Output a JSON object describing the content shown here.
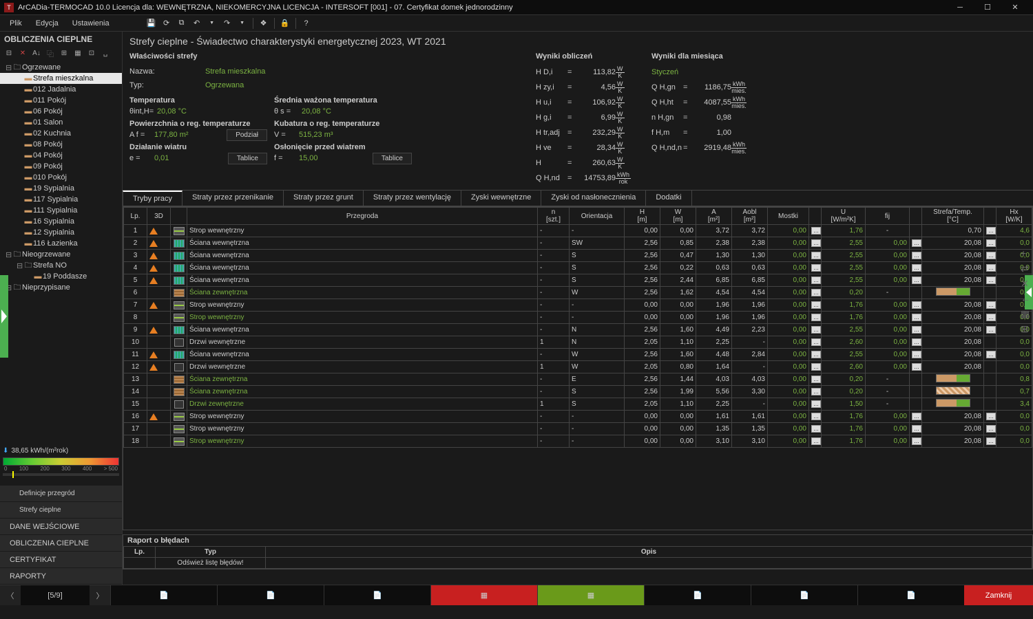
{
  "window": {
    "title": "ArCADia-TERMOCAD 10.0 Licencja dla: WEWNĘTRZNA, NIEKOMERCYJNA LICENCJA - INTERSOFT [001] - 07. Certyfikat domek jednorodzinny",
    "app_badge": "T"
  },
  "menu": {
    "file": "Plik",
    "edit": "Edycja",
    "settings": "Ustawienia"
  },
  "left_panel": {
    "title": "OBLICZENIA CIEPLNE",
    "groups": [
      {
        "label": "Ogrzewane",
        "icon": "folder",
        "expanded": true,
        "items": [
          {
            "label": "Strefa mieszkalna",
            "selected": true
          },
          {
            "label": "012 Jadalnia"
          },
          {
            "label": "011 Pokój"
          },
          {
            "label": "06 Pokój"
          },
          {
            "label": "01 Salon"
          },
          {
            "label": "02 Kuchnia"
          },
          {
            "label": "08 Pokój"
          },
          {
            "label": "04 Pokój"
          },
          {
            "label": "09 Pokój"
          },
          {
            "label": "010 Pokój"
          },
          {
            "label": "19 Sypialnia"
          },
          {
            "label": "117 Sypialnia"
          },
          {
            "label": "111 Sypialnia"
          },
          {
            "label": "16 Sypialnia"
          },
          {
            "label": "12 Sypialnia"
          },
          {
            "label": "116 Łazienka"
          }
        ]
      },
      {
        "label": "Nieogrzewane",
        "icon": "folder",
        "expanded": true,
        "items": [
          {
            "label": "Strefa NO",
            "sub": true,
            "items": [
              {
                "label": "19 Poddasze"
              }
            ]
          }
        ]
      },
      {
        "label": "Nieprzypisane",
        "icon": "folder"
      }
    ],
    "gauge_value": "38,65 kWh/(m²rok)",
    "gauge_ticks": [
      "0",
      "100",
      "200",
      "300",
      "400",
      "> 500"
    ],
    "buttons": {
      "definicje": "Definicje przegród",
      "strefy": "Strefy cieplne",
      "dane": "DANE WEJŚCIOWE",
      "oblicz": "OBLICZENIA CIEPLNE",
      "cert": "CERTYFIKAT",
      "raporty": "RAPORTY"
    }
  },
  "main": {
    "title": "Strefy cieplne - Świadectwo charakterystyki energetycznej 2023, WT 2021",
    "props_title": "Właściwości strefy",
    "nazwa_lbl": "Nazwa:",
    "nazwa_val": "Strefa mieszkalna",
    "typ_lbl": "Typ:",
    "typ_val": "Ogrzewana",
    "temp_lbl": "Temperatura",
    "temp_sym": "θint,H=",
    "temp_val": "20,08 °C",
    "srednia_lbl": "Średnia ważona temperatura",
    "srednia_sym": "θ s =",
    "srednia_val": "20,08 °C",
    "pow_lbl": "Powierzchnia o reg. temperaturze",
    "pow_sym": "A f =",
    "pow_val": "177,80 m²",
    "kub_lbl": "Kubatura o reg. temperaturze",
    "kub_sym": "V  =",
    "kub_val": "515,23 m³",
    "dzial_lbl": "Działanie wiatru",
    "dzial_sym": "e  =",
    "dzial_val": "0,01",
    "oslon_lbl": "Osłonięcie przed wiatrem",
    "oslon_sym": "f  =",
    "oslon_val": "15,00",
    "podzial_btn": "Podział",
    "tablice_btn": "Tablice",
    "wyniki_title": "Wyniki obliczeń",
    "results": [
      {
        "lbl": "H D,i",
        "val": "113,82",
        "unit_top": "W",
        "unit_bot": "K"
      },
      {
        "lbl": "H zy,i",
        "val": "4,56",
        "unit_top": "W",
        "unit_bot": "K"
      },
      {
        "lbl": "H u,i",
        "val": "106,92",
        "unit_top": "W",
        "unit_bot": "K"
      },
      {
        "lbl": "H g,i",
        "val": "6,99",
        "unit_top": "W",
        "unit_bot": "K"
      },
      {
        "lbl": "H tr,adj",
        "val": "232,29",
        "unit_top": "W",
        "unit_bot": "K"
      },
      {
        "lbl": "H ve",
        "val": "28,34",
        "unit_top": "W",
        "unit_bot": "K"
      },
      {
        "lbl": "H",
        "val": "260,63",
        "unit_top": "W",
        "unit_bot": "K"
      },
      {
        "lbl": "Q H,nd",
        "val": "14753,89",
        "unit_top": "kWh",
        "unit_bot": "rok"
      }
    ],
    "month_title": "Wyniki dla miesiąca",
    "month_val": "Styczeń",
    "month_results": [
      {
        "lbl": "Q H,gn",
        "val": "1186,75",
        "unit_top": "kWh",
        "unit_bot": "mies."
      },
      {
        "lbl": "Q H,ht",
        "val": "4087,55",
        "unit_top": "kWh",
        "unit_bot": "mies."
      },
      {
        "lbl": "n H,gn",
        "val": "0,98",
        "unit_top": "",
        "unit_bot": ""
      },
      {
        "lbl": "f H,m",
        "val": "1,00",
        "unit_top": "",
        "unit_bot": ""
      },
      {
        "lbl": "Q H,nd,n",
        "val": "2919,48",
        "unit_top": "kWh",
        "unit_bot": "mies."
      }
    ],
    "tabs": [
      "Tryby pracy",
      "Straty przez przenikanie",
      "Straty przez grunt",
      "Straty przez wentylację",
      "Zyski wewnętrzne",
      "Zyski od nasłonecznienia",
      "Dodatki"
    ],
    "cols": [
      "Lp.",
      "3D",
      "",
      "Przegroda",
      "n [szt.]",
      "Orientacja",
      "H [m]",
      "W [m]",
      "A [m²]",
      "Aobl [m²]",
      "Mostki",
      "",
      "U [W/m²K]",
      "fij",
      "",
      "Strefa/Temp. [°C]",
      "",
      "Hx [W/K]"
    ],
    "rows": [
      {
        "lp": "1",
        "tri": true,
        "kind": "floor",
        "name": "Strop wewnętrzny",
        "n": "-",
        "or": "-",
        "h": "0,00",
        "w": "0,00",
        "a": "3,72",
        "ao": "3,72",
        "m": "0,00",
        "u": "1,76",
        "f": "-",
        "t": "0,70",
        "hx": "4,6",
        "ext": false,
        "tt": true
      },
      {
        "lp": "2",
        "tri": true,
        "kind": "wall",
        "name": "Ściana wewnętrzna",
        "n": "-",
        "or": "SW",
        "h": "2,56",
        "w": "0,85",
        "a": "2,38",
        "ao": "2,38",
        "m": "0,00",
        "u": "2,55",
        "f": "0,00",
        "t": "20,08",
        "hx": "0,0",
        "tt": true
      },
      {
        "lp": "3",
        "tri": true,
        "kind": "wall",
        "name": "Ściana wewnętrzna",
        "n": "-",
        "or": "S",
        "h": "2,56",
        "w": "0,47",
        "a": "1,30",
        "ao": "1,30",
        "m": "0,00",
        "u": "2,55",
        "f": "0,00",
        "t": "20,08",
        "hx": "0,0",
        "tt": true
      },
      {
        "lp": "4",
        "tri": true,
        "kind": "wall",
        "name": "Ściana wewnętrzna",
        "n": "-",
        "or": "S",
        "h": "2,56",
        "w": "0,22",
        "a": "0,63",
        "ao": "0,63",
        "m": "0,00",
        "u": "2,55",
        "f": "0,00",
        "t": "20,08",
        "hx": "0,0",
        "tt": true
      },
      {
        "lp": "5",
        "tri": true,
        "kind": "wall",
        "name": "Ściana wewnętrzna",
        "n": "-",
        "or": "S",
        "h": "2,56",
        "w": "2,44",
        "a": "6,85",
        "ao": "6,85",
        "m": "0,00",
        "u": "2,55",
        "f": "0,00",
        "t": "20,08",
        "hx": "0,0",
        "tt": true
      },
      {
        "lp": "6",
        "tri": false,
        "kind": "ext",
        "name": "Ściana zewnętrzna",
        "n": "-",
        "or": "W",
        "h": "2,56",
        "w": "1,62",
        "a": "4,54",
        "ao": "4,54",
        "m": "0,00",
        "u": "0,20",
        "f": "-",
        "t": "",
        "hx": "0,9",
        "ext": true,
        "hatch": "h2"
      },
      {
        "lp": "7",
        "tri": true,
        "kind": "floor",
        "name": "Strop wewnętrzny",
        "n": "-",
        "or": "-",
        "h": "0,00",
        "w": "0,00",
        "a": "1,96",
        "ao": "1,96",
        "m": "0,00",
        "u": "1,76",
        "f": "0,00",
        "t": "20,08",
        "hx": "0,0",
        "tt": true
      },
      {
        "lp": "8",
        "tri": false,
        "kind": "floor",
        "name": "Strop wewnętrzny",
        "n": "-",
        "or": "-",
        "h": "0,00",
        "w": "0,00",
        "a": "1,96",
        "ao": "1,96",
        "m": "0,00",
        "u": "1,76",
        "f": "0,00",
        "t": "20,08",
        "hx": "0,0",
        "ext": true,
        "tt": true
      },
      {
        "lp": "9",
        "tri": true,
        "kind": "wall",
        "name": "Ściana wewnętrzna",
        "n": "-",
        "or": "N",
        "h": "2,56",
        "w": "1,60",
        "a": "4,49",
        "ao": "2,23",
        "m": "0,00",
        "u": "2,55",
        "f": "0,00",
        "t": "20,08",
        "hx": "0,0",
        "tt": true
      },
      {
        "lp": "10",
        "tri": false,
        "kind": "door",
        "name": "Drzwi wewnętrzne",
        "n": "1",
        "or": "N",
        "h": "2,05",
        "w": "1,10",
        "a": "2,25",
        "ao": "-",
        "m": "0,00",
        "u": "2,60",
        "f": "0,00",
        "t": "20,08",
        "hx": "0,0"
      },
      {
        "lp": "11",
        "tri": true,
        "kind": "wall",
        "name": "Ściana wewnętrzna",
        "n": "-",
        "or": "W",
        "h": "2,56",
        "w": "1,60",
        "a": "4,48",
        "ao": "2,84",
        "m": "0,00",
        "u": "2,55",
        "f": "0,00",
        "t": "20,08",
        "hx": "0,0",
        "tt": true
      },
      {
        "lp": "12",
        "tri": true,
        "kind": "door",
        "name": "Drzwi wewnętrzne",
        "n": "1",
        "or": "W",
        "h": "2,05",
        "w": "0,80",
        "a": "1,64",
        "ao": "-",
        "m": "0,00",
        "u": "2,60",
        "f": "0,00",
        "t": "20,08",
        "hx": "0,0"
      },
      {
        "lp": "13",
        "tri": false,
        "kind": "ext",
        "name": "Ściana zewnętrzna",
        "n": "-",
        "or": "E",
        "h": "2,56",
        "w": "1,44",
        "a": "4,03",
        "ao": "4,03",
        "m": "0,00",
        "u": "0,20",
        "f": "-",
        "t": "",
        "hx": "0,8",
        "ext": true,
        "hatch": "h2"
      },
      {
        "lp": "14",
        "tri": false,
        "kind": "ext",
        "name": "Ściana zewnętrzna",
        "n": "-",
        "or": "S",
        "h": "2,56",
        "w": "1,99",
        "a": "5,56",
        "ao": "3,30",
        "m": "0,00",
        "u": "0,20",
        "f": "-",
        "t": "",
        "hx": "0,7",
        "ext": true,
        "hatch": "h1"
      },
      {
        "lp": "15",
        "tri": false,
        "kind": "door2",
        "name": "Drzwi zewnętrzne",
        "n": "1",
        "or": "S",
        "h": "2,05",
        "w": "1,10",
        "a": "2,25",
        "ao": "-",
        "m": "0,00",
        "u": "1,50",
        "f": "-",
        "t": "",
        "hx": "3,4",
        "ext": true,
        "hatch": "h2"
      },
      {
        "lp": "16",
        "tri": true,
        "kind": "floor",
        "name": "Strop wewnętrzny",
        "n": "-",
        "or": "-",
        "h": "0,00",
        "w": "0,00",
        "a": "1,61",
        "ao": "1,61",
        "m": "0,00",
        "u": "1,76",
        "f": "0,00",
        "t": "20,08",
        "hx": "0,0",
        "tt": true
      },
      {
        "lp": "17",
        "tri": false,
        "kind": "floor",
        "name": "Strop wewnętrzny",
        "n": "-",
        "or": "-",
        "h": "0,00",
        "w": "0,00",
        "a": "1,35",
        "ao": "1,35",
        "m": "0,00",
        "u": "1,76",
        "f": "0,00",
        "t": "20,08",
        "hx": "0,0",
        "tt": true
      },
      {
        "lp": "18",
        "tri": false,
        "kind": "floor",
        "name": "Strop wewnętrzny",
        "n": "-",
        "or": "-",
        "h": "0,00",
        "w": "0,00",
        "a": "3,10",
        "ao": "3,10",
        "m": "0,00",
        "u": "1,76",
        "f": "0,00",
        "t": "20,08",
        "hx": "0,0",
        "ext": true,
        "tt": true
      }
    ],
    "report_title": "Raport o błędach",
    "report_cols": [
      "Lp.",
      "Typ",
      "Opis"
    ],
    "report_row": "Odśwież listę błędów!"
  },
  "footer": {
    "page": "[5/9]",
    "close": "Zamknij"
  }
}
